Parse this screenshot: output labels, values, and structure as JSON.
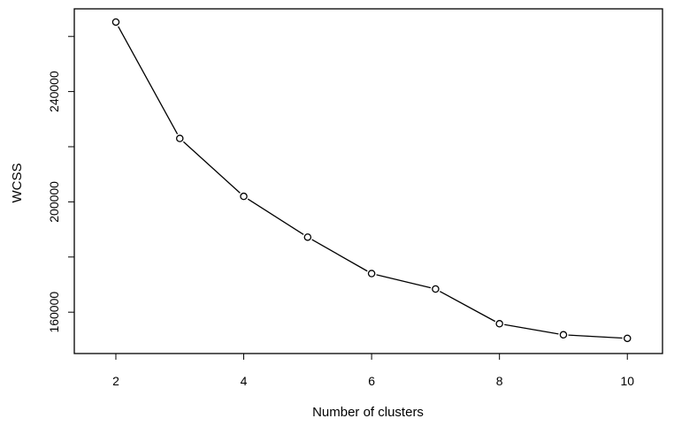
{
  "chart_data": {
    "type": "line",
    "title": "",
    "xlabel": "Number of clusters",
    "ylabel": "WCSS",
    "x": [
      2,
      3,
      4,
      5,
      6,
      7,
      8,
      9,
      10
    ],
    "series": [
      {
        "values": [
          265200,
          223000,
          202000,
          187200,
          174000,
          168400,
          155800,
          151800,
          150500
        ]
      }
    ],
    "xlim": [
      1.35,
      10.55
    ],
    "ylim": [
      145000,
      270000
    ],
    "xticks": [
      "2",
      "4",
      "6",
      "8",
      "10"
    ],
    "yticks": [
      "160000",
      "200000",
      "240000"
    ],
    "grid": false,
    "legend": "none",
    "colors": {
      "line": "#000000",
      "marker_fill": "#ffffff",
      "frame": "#000000"
    }
  }
}
